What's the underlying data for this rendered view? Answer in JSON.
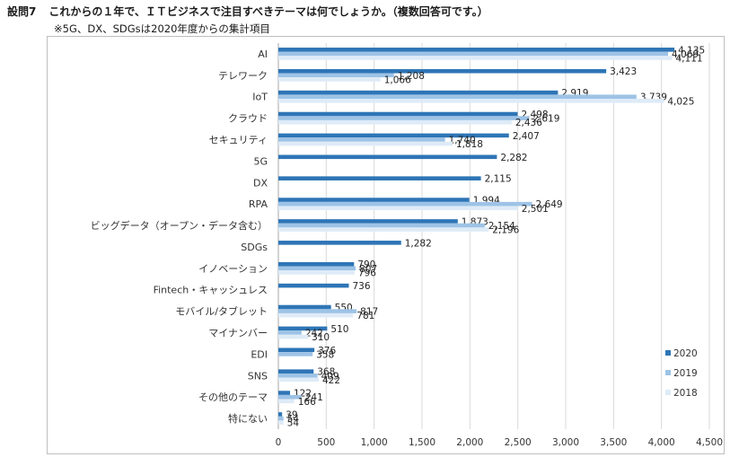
{
  "header": {
    "question_no": "設問7",
    "title": "これからの１年で、ＩＴビジネスで注目すべきテーマは何でしょうか。（複数回答可です。）",
    "note": "※5G、DX、SDGsは2020年度からの集計項目"
  },
  "colors": {
    "2020": "#2e75b6",
    "2019": "#9dc3e6",
    "2018": "#deebf7"
  },
  "chart_data": {
    "type": "bar",
    "orientation": "horizontal",
    "categories": [
      "AI",
      "テレワーク",
      "IoT",
      "クラウド",
      "セキュリティ",
      "5G",
      "DX",
      "RPA",
      "ビッグデータ（オープン・データ含む）",
      "SDGs",
      "イノベーション",
      "Fintech・キャッシュレス",
      "モバイル/タブレット",
      "マイナンバー",
      "EDI",
      "SNS",
      "その他のテーマ",
      "特にない"
    ],
    "series": [
      {
        "name": "2020",
        "values": [
          4135,
          3423,
          2919,
          2498,
          2407,
          2282,
          2115,
          1994,
          1873,
          1282,
          790,
          736,
          550,
          510,
          376,
          368,
          122,
          39
        ]
      },
      {
        "name": "2019",
        "values": [
          4069,
          1208,
          3739,
          2619,
          1740,
          null,
          null,
          2649,
          2154,
          null,
          807,
          null,
          817,
          242,
          358,
          409,
          241,
          54
        ]
      },
      {
        "name": "2018",
        "values": [
          4111,
          1066,
          4025,
          2436,
          1818,
          null,
          null,
          2501,
          2196,
          null,
          796,
          null,
          781,
          310,
          null,
          422,
          166,
          54
        ]
      }
    ],
    "data_labels": {
      "2020": [
        "4,135",
        "3,423",
        "2,919",
        "2,498",
        "2,407",
        "2,282",
        "2,115",
        "1,994",
        "1,873",
        "1,282",
        "790",
        "736",
        "550",
        "510",
        "376",
        "368",
        "122",
        "39"
      ],
      "2019": [
        "4,069",
        "1,208",
        "3,739",
        "2,619",
        "1,740",
        "",
        "",
        "2,649",
        "2,154",
        "",
        "807",
        "",
        "817",
        "242",
        "358",
        "409",
        "241",
        "54"
      ],
      "2018": [
        "4,111",
        "1,066",
        "4,025",
        "2,436",
        "1,818",
        "",
        "",
        "2,501",
        "2,196",
        "",
        "796",
        "",
        "781",
        "310",
        "",
        "422",
        "166",
        "54"
      ]
    },
    "xlim": [
      0,
      4500
    ],
    "xticks": [
      "0",
      "500",
      "1,000",
      "1,500",
      "2,000",
      "2,500",
      "3,000",
      "3,500",
      "4,000",
      "4,500"
    ],
    "legend": [
      "2020",
      "2019",
      "2018"
    ],
    "legend_position": "bottom-right",
    "grid": true
  }
}
